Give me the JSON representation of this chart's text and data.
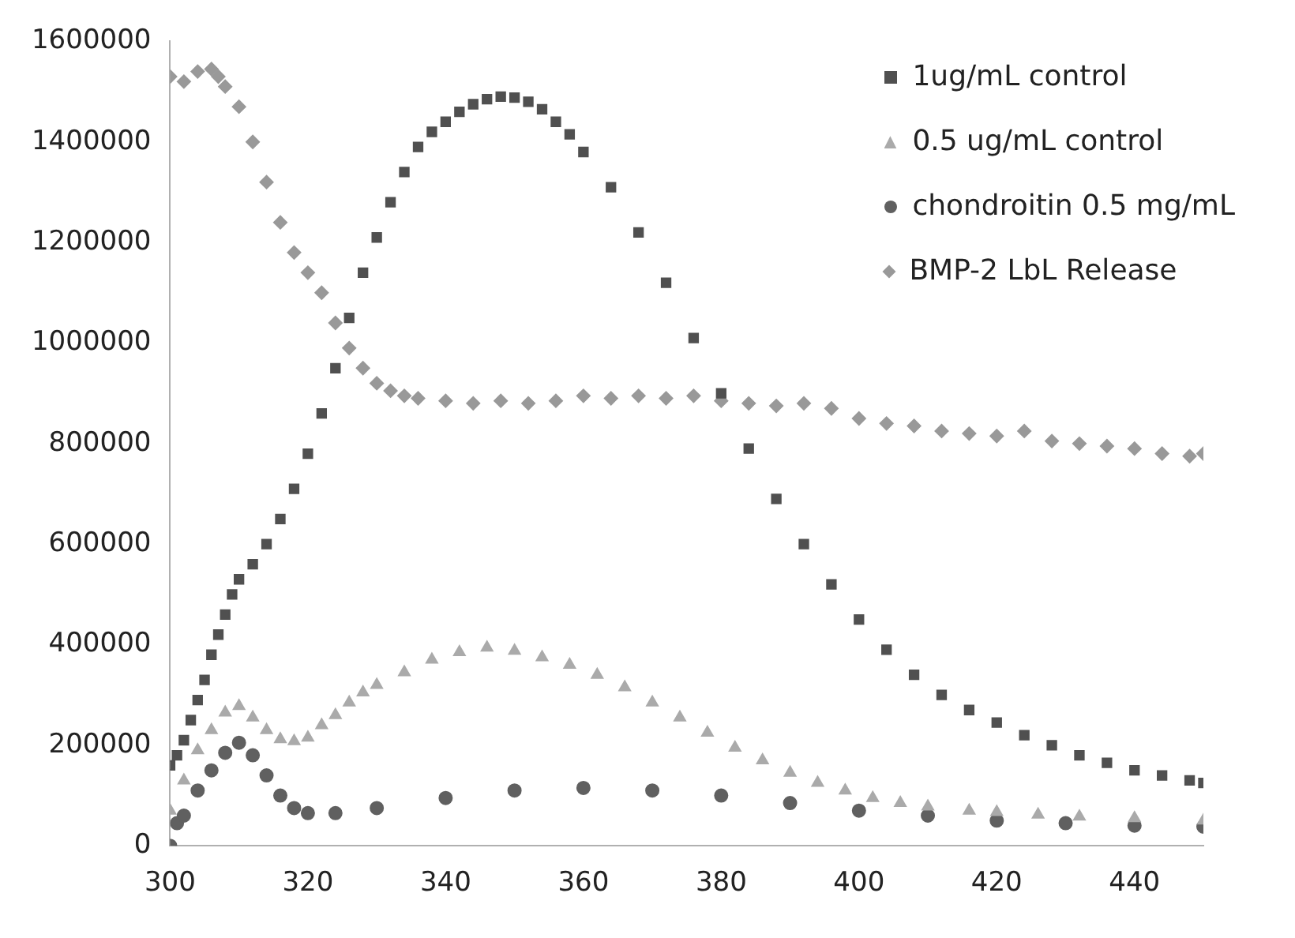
{
  "chart_data": {
    "type": "scatter",
    "xlim": [
      300,
      450
    ],
    "xticks": [
      300,
      320,
      340,
      360,
      380,
      400,
      420,
      440
    ],
    "ylim": [
      0,
      1600000
    ],
    "yticks": [
      0,
      200000,
      400000,
      600000,
      800000,
      1000000,
      1200000,
      1400000,
      1600000
    ],
    "grid": false,
    "legend": "top right",
    "series": [
      {
        "name": "1ug/mL control",
        "color": "#505050",
        "marker": "square",
        "x": [
          300,
          301,
          302,
          303,
          304,
          305,
          306,
          307,
          308,
          309,
          310,
          312,
          314,
          316,
          318,
          320,
          322,
          324,
          326,
          328,
          330,
          332,
          334,
          336,
          338,
          340,
          342,
          344,
          346,
          348,
          350,
          352,
          354,
          356,
          358,
          360,
          364,
          368,
          372,
          376,
          380,
          384,
          388,
          392,
          396,
          400,
          404,
          408,
          412,
          416,
          420,
          424,
          428,
          432,
          436,
          440,
          444,
          448,
          450
        ],
        "values": [
          160000,
          180000,
          210000,
          250000,
          290000,
          330000,
          380000,
          420000,
          460000,
          500000,
          530000,
          560000,
          600000,
          650000,
          710000,
          780000,
          860000,
          950000,
          1050000,
          1140000,
          1210000,
          1280000,
          1340000,
          1390000,
          1420000,
          1440000,
          1460000,
          1475000,
          1485000,
          1490000,
          1488000,
          1480000,
          1465000,
          1440000,
          1415000,
          1380000,
          1310000,
          1220000,
          1120000,
          1010000,
          900000,
          790000,
          690000,
          600000,
          520000,
          450000,
          390000,
          340000,
          300000,
          270000,
          245000,
          220000,
          200000,
          180000,
          165000,
          150000,
          140000,
          130000,
          125000
        ]
      },
      {
        "name": "0.5 ug/mL control",
        "color": "#aaaaaa",
        "marker": "triangle",
        "x": [
          300,
          302,
          304,
          306,
          308,
          310,
          312,
          314,
          316,
          318,
          320,
          322,
          324,
          326,
          328,
          330,
          334,
          338,
          342,
          346,
          350,
          354,
          358,
          362,
          366,
          370,
          374,
          378,
          382,
          386,
          390,
          394,
          398,
          402,
          406,
          410,
          416,
          420,
          426,
          432,
          440,
          450
        ],
        "values": [
          70000,
          130000,
          190000,
          230000,
          265000,
          278000,
          255000,
          230000,
          212000,
          208000,
          215000,
          240000,
          260000,
          285000,
          305000,
          320000,
          345000,
          370000,
          385000,
          394000,
          388000,
          375000,
          360000,
          340000,
          315000,
          285000,
          255000,
          225000,
          195000,
          170000,
          145000,
          125000,
          110000,
          95000,
          85000,
          78000,
          70000,
          67000,
          62000,
          58000,
          55000,
          50000
        ]
      },
      {
        "name": "chondroitin 0.5 mg/mL",
        "color": "#606060",
        "marker": "circle",
        "x": [
          300,
          301,
          302,
          304,
          306,
          308,
          310,
          312,
          314,
          316,
          318,
          320,
          324,
          330,
          340,
          350,
          360,
          370,
          380,
          390,
          400,
          410,
          420,
          430,
          440,
          450
        ],
        "values": [
          0,
          45000,
          60000,
          110000,
          150000,
          185000,
          205000,
          180000,
          140000,
          100000,
          75000,
          65000,
          65000,
          75000,
          95000,
          110000,
          115000,
          110000,
          100000,
          85000,
          70000,
          60000,
          50000,
          45000,
          40000,
          38000
        ]
      },
      {
        "name": "BMP-2 LbL Release",
        "color": "#999999",
        "marker": "diamond",
        "x": [
          300,
          302,
          304,
          306,
          307,
          308,
          310,
          312,
          314,
          316,
          318,
          320,
          322,
          324,
          326,
          328,
          330,
          332,
          334,
          336,
          340,
          344,
          348,
          352,
          356,
          360,
          364,
          368,
          372,
          376,
          380,
          384,
          388,
          392,
          396,
          400,
          404,
          408,
          412,
          416,
          420,
          424,
          428,
          432,
          436,
          440,
          444,
          448,
          450
        ],
        "values": [
          1530000,
          1520000,
          1540000,
          1545000,
          1530000,
          1510000,
          1470000,
          1400000,
          1320000,
          1240000,
          1180000,
          1140000,
          1100000,
          1040000,
          990000,
          950000,
          920000,
          905000,
          895000,
          890000,
          885000,
          880000,
          885000,
          880000,
          885000,
          895000,
          890000,
          895000,
          890000,
          895000,
          885000,
          880000,
          875000,
          880000,
          870000,
          850000,
          840000,
          835000,
          825000,
          820000,
          815000,
          825000,
          805000,
          800000,
          795000,
          790000,
          780000,
          775000,
          780000
        ]
      }
    ]
  }
}
